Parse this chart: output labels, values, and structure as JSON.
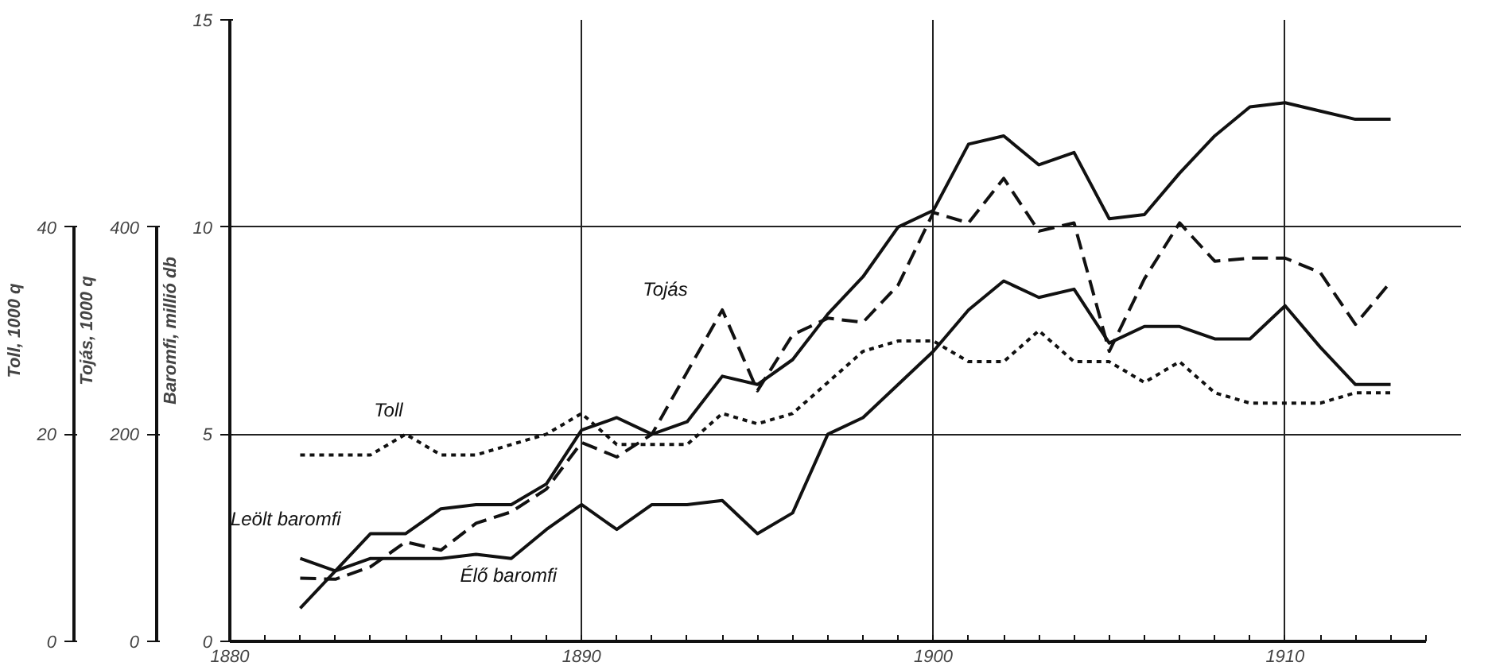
{
  "chart_data": {
    "type": "line",
    "x": [
      1882,
      1883,
      1884,
      1885,
      1886,
      1887,
      1888,
      1889,
      1890,
      1891,
      1892,
      1893,
      1894,
      1895,
      1896,
      1897,
      1898,
      1899,
      1900,
      1901,
      1902,
      1903,
      1904,
      1905,
      1906,
      1907,
      1908,
      1909,
      1910,
      1911,
      1912,
      1913
    ],
    "series": [
      {
        "name": "Toll",
        "color": "#111111",
        "axis": "y2",
        "line_style": "dotted",
        "values": [
          18,
          18,
          18,
          20,
          18,
          18,
          19,
          20,
          22,
          19,
          19,
          19,
          22,
          21,
          22,
          25,
          28,
          29,
          29,
          27,
          27,
          30,
          27,
          27,
          25,
          27,
          24,
          23,
          23,
          23,
          24,
          24
        ]
      },
      {
        "name": "Tojás",
        "color": "#111111",
        "axis": "y3",
        "line_style": "dashed",
        "values": [
          61,
          60,
          72,
          96,
          88,
          114,
          125,
          147,
          192,
          178,
          200,
          260,
          320,
          242,
          296,
          312,
          308,
          344,
          414,
          404,
          447,
          396,
          404,
          280,
          350,
          404,
          367,
          370,
          370,
          356,
          306,
          347
        ]
      },
      {
        "name": "Leölt baromfi",
        "color": "#111111",
        "line_style": "solid",
        "values": [
          0.8,
          1.7,
          2.6,
          2.6,
          3.2,
          3.3,
          3.3,
          3.8,
          5.1,
          5.4,
          5.0,
          5.3,
          6.4,
          6.2,
          6.8,
          7.9,
          8.8,
          10.0,
          10.4,
          12.0,
          12.2,
          11.5,
          11.8,
          10.2,
          10.3,
          11.3,
          12.2,
          12.9,
          13.0,
          12.8,
          12.6,
          12.6
        ]
      },
      {
        "name": "Élő baromfi",
        "color": "#111111",
        "line_style": "solid",
        "values": [
          2.0,
          1.7,
          2.0,
          2.0,
          2.0,
          2.1,
          2.0,
          2.7,
          3.3,
          2.7,
          3.3,
          3.3,
          3.4,
          2.6,
          3.1,
          5.0,
          5.4,
          6.2,
          7.0,
          8.0,
          8.7,
          8.3,
          8.5,
          7.2,
          7.6,
          7.6,
          7.3,
          7.3,
          8.1,
          7.1,
          6.2,
          6.2
        ]
      }
    ],
    "ylabel": "Baromfi, millió db",
    "y2label": "Toll, 1000 q",
    "y3label": "Tojás, 1000 q",
    "xlim": [
      1880,
      1915
    ],
    "xticks": [
      1880,
      {
        "value": 1881,
        "label": null
      },
      {
        "value": 1882,
        "label": null
      },
      {
        "value": 1883,
        "label": null
      },
      {
        "value": 1884,
        "label": null
      },
      {
        "value": 1885,
        "label": null
      },
      {
        "value": 1886,
        "label": null
      },
      {
        "value": 1887,
        "label": null
      },
      {
        "value": 1888,
        "label": null
      },
      {
        "value": 1889,
        "label": null
      },
      1890,
      {
        "value": 1891,
        "label": null
      },
      {
        "value": 1892,
        "label": null
      },
      {
        "value": 1893,
        "label": null
      },
      {
        "value": 1894,
        "label": null
      },
      {
        "value": 1895,
        "label": null
      },
      {
        "value": 1896,
        "label": null
      },
      {
        "value": 1897,
        "label": null
      },
      {
        "value": 1898,
        "label": null
      },
      {
        "value": 1899,
        "label": null
      },
      1900,
      {
        "value": 1901,
        "label": null
      },
      {
        "value": 1902,
        "label": null
      },
      {
        "value": 1903,
        "label": null
      },
      {
        "value": 1904,
        "label": null
      },
      {
        "value": 1905,
        "label": null
      },
      {
        "value": 1906,
        "label": null
      },
      {
        "value": 1907,
        "label": null
      },
      {
        "value": 1908,
        "label": null
      },
      {
        "value": 1909,
        "label": null
      },
      1910,
      {
        "value": 1911,
        "label": null
      },
      {
        "value": 1912,
        "label": null
      },
      {
        "value": 1913,
        "label": null
      },
      {
        "value": 1914,
        "label": null
      }
    ],
    "ylim": [
      0,
      15
    ],
    "yticks": [
      0,
      5,
      10,
      15
    ],
    "y2lim": [
      0,
      60
    ],
    "y2ticks": [
      0,
      20,
      40
    ],
    "y3lim": [
      0,
      600
    ],
    "y3ticks": [
      0,
      200,
      400
    ],
    "grid": true,
    "legend": false,
    "marker": "none"
  }
}
